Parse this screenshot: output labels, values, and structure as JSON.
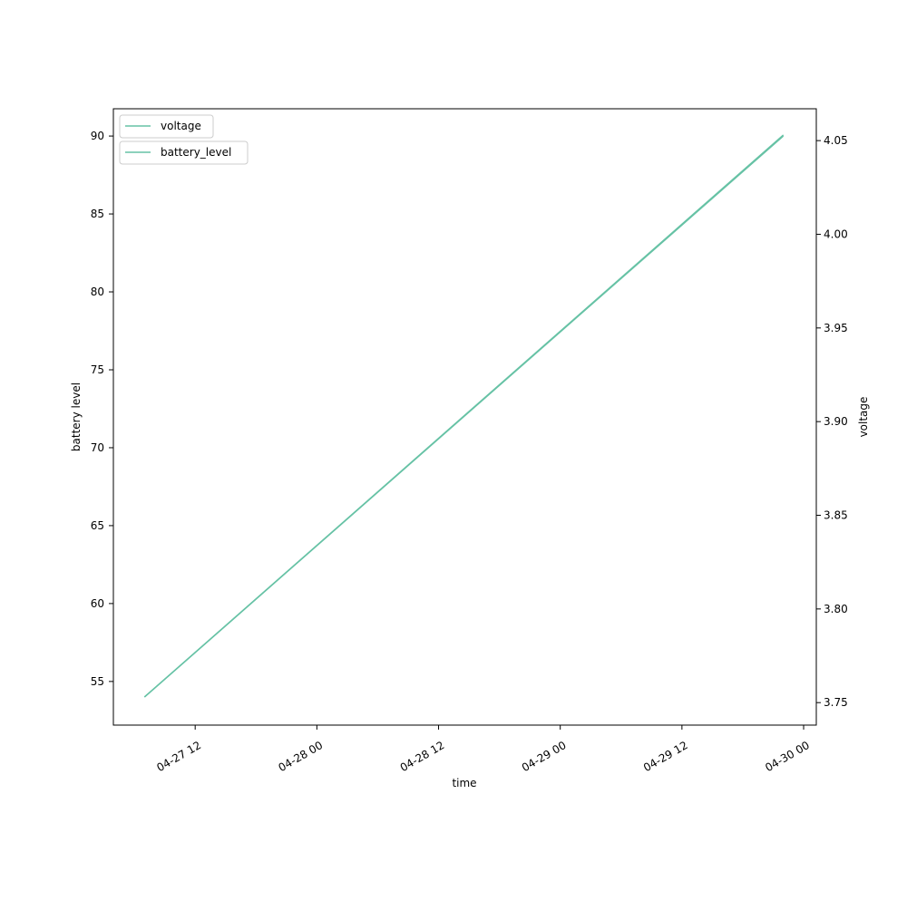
{
  "chart_data": {
    "type": "line",
    "xlabel": "time",
    "ylabel_left": "battery level",
    "ylabel_right": "voltage",
    "x": [
      "04-27 07:00",
      "04-29 22:00"
    ],
    "xlim": [
      "04-27 03:56",
      "04-30 01:15"
    ],
    "xticks": [
      "04-27 12",
      "04-28 00",
      "04-28 12",
      "04-29 00",
      "04-29 12",
      "04-30 00"
    ],
    "series": [
      {
        "name": "battery_level",
        "axis": "left",
        "values": [
          54,
          90
        ],
        "color": "#66c2a5"
      },
      {
        "name": "voltage",
        "axis": "right",
        "values": [
          3.753,
          4.053
        ],
        "color": "#66c2a5"
      }
    ],
    "ylim_left": [
      52.2,
      91.75
    ],
    "yticks_left": [
      "55",
      "60",
      "65",
      "70",
      "75",
      "80",
      "85",
      "90"
    ],
    "ylim_right": [
      3.738,
      4.067
    ],
    "yticks_right": [
      "3.75",
      "3.80",
      "3.85",
      "3.90",
      "3.95",
      "4.00",
      "4.05"
    ],
    "grid": false,
    "legend": [
      {
        "label": "battery_level",
        "placement": "upper-left"
      },
      {
        "label": "voltage",
        "placement": "upper-left"
      }
    ]
  }
}
